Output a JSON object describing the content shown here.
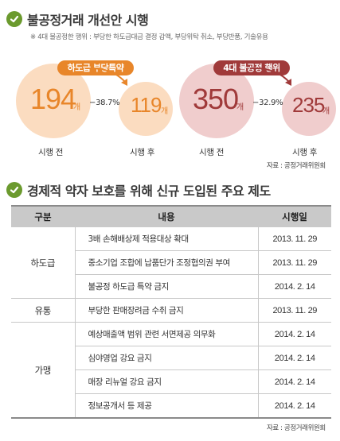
{
  "section1": {
    "title": "불공정거래 개선안 시행",
    "note": "※ 4대 불공정한 행위 : 부당한 하도급대금 결정 감액, 부당위탁 취소, 부당반품, 기술유용"
  },
  "subcontract": {
    "badge": "하도급 부당특약",
    "before_value": "194",
    "after_value": "119",
    "unit": "개",
    "change": "−38.7%",
    "before_label": "시행 전",
    "after_label": "시행 후",
    "badge_color": "#e8862a",
    "circle_color": "#fbdcc0"
  },
  "unfair": {
    "badge": "4대 불공정 행위",
    "before_value": "350",
    "after_value": "235",
    "unit": "개",
    "change": "−32.9%",
    "before_label": "시행 전",
    "after_label": "시행 후",
    "badge_color": "#a03a3a",
    "circle_color": "#f0cdcd"
  },
  "source1": "자료 : 공정거래위원회",
  "section2": {
    "title": "경제적 약자 보호를 위해 신규 도입된 주요 제도"
  },
  "table": {
    "headers": [
      "구분",
      "내용",
      "시행일"
    ],
    "groups": [
      {
        "category": "하도급",
        "rows": [
          {
            "content": "3배 손해배상제 적용대상 확대",
            "date": "2013. 11. 29"
          },
          {
            "content": "중소기업 조합에 납품단가 조정협의권 부여",
            "date": "2013. 11. 29"
          },
          {
            "content": "불공정 하도급 특약 금지",
            "date": "2014. 2. 14"
          }
        ]
      },
      {
        "category": "유통",
        "rows": [
          {
            "content": "부당한 판매장려금 수취 금지",
            "date": "2013. 11. 29"
          }
        ]
      },
      {
        "category": "가맹",
        "rows": [
          {
            "content": "예상매출액 범위 관련 서면제공 의무화",
            "date": "2014. 2. 14"
          },
          {
            "content": "심야영업 강요 금지",
            "date": "2014. 2. 14"
          },
          {
            "content": "매장 리뉴얼 강요 금지",
            "date": "2014. 2. 14"
          },
          {
            "content": "정보공개서 등 제공",
            "date": "2014. 2. 14"
          }
        ]
      }
    ]
  },
  "source2": "자료 : 공정거래위원회"
}
